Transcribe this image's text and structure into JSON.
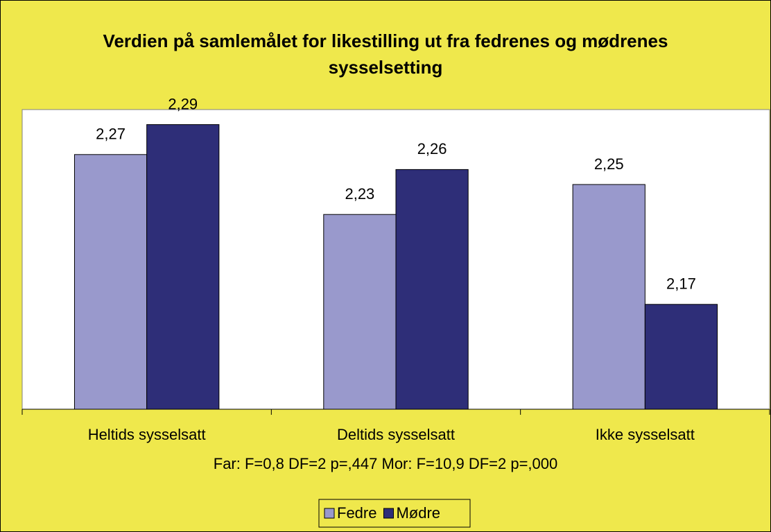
{
  "chart_data": {
    "type": "bar",
    "title": "Verdien på samlemålet for likestilling ut fra fedrenes og mødrenes sysselsetting",
    "xlabel": "Far: F=0,8 DF=2 p=,447   Mor: F=10,9 DF=2 p=,000",
    "categories": [
      "Heltids sysselsatt",
      "Deltids sysselsatt",
      "Ikke sysselsatt"
    ],
    "series": [
      {
        "name": "Fedre",
        "color": "#9999cc",
        "values": [
          2.27,
          2.23,
          2.25
        ],
        "value_labels": [
          "2,27",
          "2,23",
          "2,25"
        ]
      },
      {
        "name": "Mødre",
        "color": "#2e2e78",
        "values": [
          2.29,
          2.26,
          2.17
        ],
        "value_labels": [
          "2,29",
          "2,26",
          "2,17"
        ]
      }
    ],
    "ylim": [
      2.1,
      2.3
    ],
    "grid": false,
    "legend": "bottom"
  }
}
